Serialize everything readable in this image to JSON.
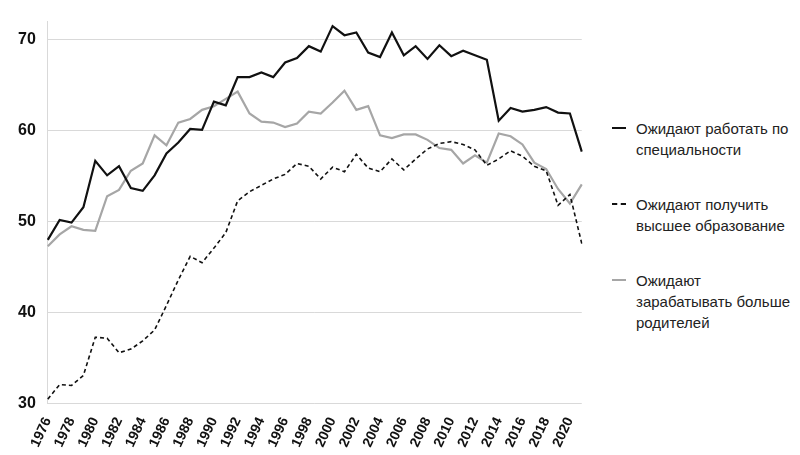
{
  "chart_data": {
    "type": "line",
    "categories": [
      "1976",
      null,
      "1978",
      null,
      "1980",
      null,
      "1982",
      null,
      "1984",
      null,
      "1986",
      null,
      "1988",
      null,
      "1990",
      null,
      "1992",
      null,
      "1994",
      null,
      "1996",
      null,
      "1998",
      null,
      "2000",
      null,
      "2002",
      null,
      "2004",
      null,
      "2006",
      null,
      "2008",
      null,
      "2010",
      null,
      "2012",
      null,
      "2014",
      null,
      "2016",
      null,
      "2018",
      null,
      "2020",
      null
    ],
    "series": [
      {
        "name": "Ожидают работать по специальности",
        "color": "#111111",
        "line_style": "solid",
        "values": [
          48.0,
          50.2,
          49.9,
          51.6,
          56.7,
          55.1,
          56.1,
          53.7,
          53.4,
          55.1,
          57.5,
          58.7,
          60.2,
          60.1,
          63.2,
          62.8,
          65.9,
          65.9,
          66.4,
          65.9,
          67.5,
          68.0,
          69.3,
          68.7,
          71.5,
          70.5,
          70.8,
          68.6,
          68.1,
          70.8,
          68.3,
          69.3,
          67.9,
          69.4,
          68.2,
          68.8,
          68.3,
          67.8,
          61.1,
          62.5,
          62.1,
          62.3,
          62.6,
          62.0,
          61.9,
          57.7
        ]
      },
      {
        "name": "Ожидают получить высшее образование",
        "color": "#111111",
        "line_style": "dashed",
        "values": [
          30.5,
          32.1,
          32.0,
          33.1,
          37.3,
          37.2,
          35.6,
          36.0,
          36.9,
          38.1,
          40.8,
          43.6,
          46.2,
          45.5,
          47.1,
          48.8,
          52.3,
          53.3,
          54.0,
          54.7,
          55.2,
          56.4,
          56.1,
          54.7,
          56.0,
          55.5,
          57.4,
          55.9,
          55.5,
          56.9,
          55.7,
          56.9,
          58.0,
          58.6,
          58.8,
          58.5,
          57.9,
          56.2,
          56.9,
          57.8,
          57.2,
          56.1,
          55.6,
          51.8,
          53.0,
          47.6
        ]
      },
      {
        "name": "Ожидают зарабатывать больше родителей",
        "color": "#a6a6a6",
        "line_style": "solid",
        "values": [
          47.3,
          48.6,
          49.5,
          49.1,
          49.0,
          52.8,
          53.5,
          55.6,
          56.4,
          59.5,
          58.4,
          60.9,
          61.3,
          62.3,
          62.7,
          63.5,
          64.3,
          61.9,
          61.0,
          60.9,
          60.4,
          60.8,
          62.1,
          61.9,
          63.1,
          64.4,
          62.3,
          62.7,
          59.5,
          59.2,
          59.6,
          59.6,
          59.0,
          58.1,
          57.9,
          56.4,
          57.3,
          56.5,
          59.7,
          59.4,
          58.5,
          56.5,
          55.8,
          53.6,
          52.0,
          54.1
        ]
      }
    ],
    "ylim": [
      30,
      72
    ],
    "yticks": [
      30,
      40,
      50,
      60,
      70
    ],
    "grid": true,
    "legend": "right"
  }
}
